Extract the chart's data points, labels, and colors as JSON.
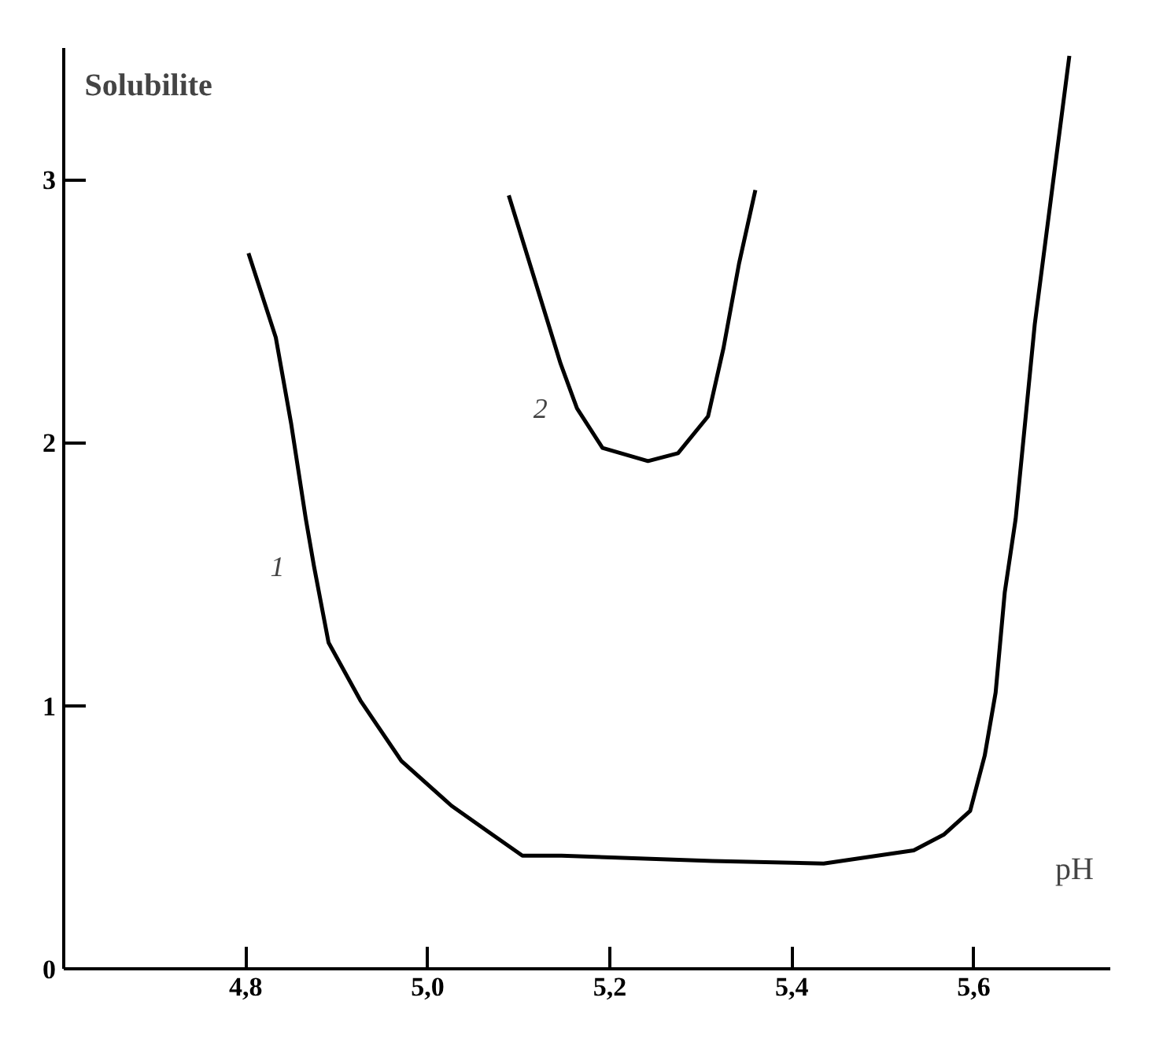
{
  "chart_data": {
    "type": "line",
    "xlabel": "pH",
    "ylabel": "Solubilite",
    "xlim": [
      4.6,
      5.75
    ],
    "ylim": [
      0,
      3.5
    ],
    "xticks": [
      {
        "value": 4.8,
        "label": "4,8"
      },
      {
        "value": 5.0,
        "label": "5,0"
      },
      {
        "value": 5.2,
        "label": "5,2"
      },
      {
        "value": 5.4,
        "label": "5,4"
      },
      {
        "value": 5.6,
        "label": "5,6"
      }
    ],
    "yticks": [
      0,
      1,
      2,
      3
    ],
    "grid": false,
    "marker": "none",
    "line_style": "solid",
    "series": [
      {
        "color": "#000000",
        "x": [
          4.803,
          4.833,
          4.85,
          4.866,
          4.875,
          4.891,
          4.926,
          4.971,
          5.026,
          5.071,
          5.104,
          5.147,
          5.313,
          5.435,
          5.534,
          5.567,
          5.596,
          5.612,
          5.624,
          5.634,
          5.646,
          5.667,
          5.705
        ],
        "values": [
          2.72,
          2.4,
          2.07,
          1.71,
          1.53,
          1.24,
          1.02,
          0.79,
          0.62,
          0.51,
          0.43,
          0.43,
          0.41,
          0.4,
          0.45,
          0.51,
          0.6,
          0.81,
          1.05,
          1.43,
          1.71,
          2.45,
          3.47
        ]
      },
      {
        "color": "#000000",
        "x": [
          5.089,
          5.146,
          5.164,
          5.192,
          5.242,
          5.275,
          5.308,
          5.325,
          5.342,
          5.36
        ],
        "values": [
          2.94,
          2.3,
          2.13,
          1.98,
          1.93,
          1.96,
          2.1,
          2.36,
          2.68,
          2.96
        ]
      }
    ],
    "annotations": [
      "1",
      "2"
    ]
  }
}
